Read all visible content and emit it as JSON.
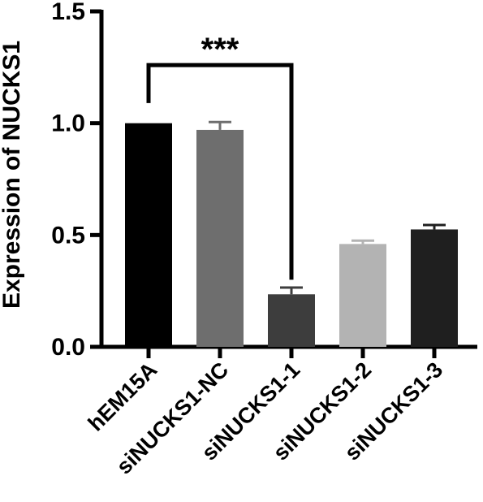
{
  "chart_data": {
    "type": "bar",
    "title": "",
    "xlabel": "",
    "ylabel": "Expression of NUCKS1",
    "ylim": [
      0,
      1.5
    ],
    "yticks": [
      "0.0",
      "0.5",
      "1.0",
      "1.5"
    ],
    "categories": [
      "hEM15A",
      "siNUCKS1-NC",
      "siNUCKS1-1",
      "siNUCKS1-2",
      "siNUCKS1-3"
    ],
    "values": [
      1.0,
      0.97,
      0.235,
      0.46,
      0.525
    ],
    "errors": [
      0.0,
      0.035,
      0.03,
      0.015,
      0.02
    ],
    "colors": [
      "#000000",
      "#6e6e6e",
      "#3d3d3d",
      "#b3b3b3",
      "#1f1f1f"
    ],
    "grid": false,
    "significance": {
      "from": "hEM15A",
      "to": "siNUCKS1-1",
      "label": "***"
    }
  }
}
